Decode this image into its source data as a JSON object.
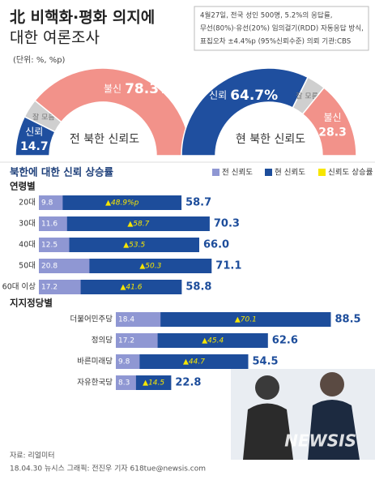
{
  "header": {
    "title": [
      "北 비핵화·평화 의지에",
      "대한 여론조사"
    ],
    "unit": "(단위: %, %p)",
    "note": [
      "4월27일, 전국 성인 500명, 5.2%의 응답률,",
      "무선(80%)·유선(20%) 임의걸기(RDD) 자동응답 방식,",
      "표집오차 ±4.4%p (95%신뢰수준) 의뢰 기관:CBS"
    ]
  },
  "chart_data": [
    {
      "type": "half-donut",
      "title": "전 북한 신뢰도",
      "categories": [
        "신뢰",
        "잘 모름",
        "불신"
      ],
      "values": [
        14.7,
        7.0,
        78.3
      ],
      "value_labels": [
        "14.7",
        null,
        "78.3%"
      ],
      "colors": [
        "#1f4f9f",
        "#cfcfcf",
        "#f2928a"
      ]
    },
    {
      "type": "half-donut",
      "title": "현 북한 신뢰도",
      "categories": [
        "신뢰",
        "잘 모름",
        "불신"
      ],
      "values": [
        64.7,
        7.0,
        28.3
      ],
      "value_labels": [
        "64.7%",
        null,
        "28.3"
      ],
      "colors": [
        "#1f4f9f",
        "#cfcfcf",
        "#f2928a"
      ]
    },
    {
      "type": "hbar-overlap",
      "title": "북한에 대한 신뢰 상승률",
      "subtitle": "연령별",
      "legend": "top-right",
      "categories": [
        "20대",
        "30대",
        "40대",
        "50대",
        "60대 이상"
      ],
      "series": [
        {
          "name": "전 신뢰도",
          "color": "#8f97d3",
          "values": [
            9.8,
            11.6,
            12.5,
            20.8,
            17.2
          ]
        },
        {
          "name": "현 신뢰도",
          "color": "#1d4d9b",
          "values": [
            58.7,
            70.3,
            66.0,
            71.1,
            58.8
          ],
          "value_labels": [
            "58.7",
            "70.3",
            "66.0",
            "71.1",
            "58.8"
          ]
        },
        {
          "name": "신뢰도 상승률",
          "color": "#f7e600",
          "values": [
            48.9,
            58.7,
            53.5,
            50.3,
            41.6
          ],
          "value_labels": [
            "▲48.9%p",
            "▲58.7",
            "▲53.5",
            "▲50.3",
            "▲41.6"
          ]
        }
      ]
    },
    {
      "type": "hbar-overlap",
      "subtitle": "지지정당별",
      "categories": [
        "더불어민주당",
        "정의당",
        "바른미래당",
        "자유한국당"
      ],
      "series": [
        {
          "color": "#8f97d3",
          "values": [
            18.4,
            17.2,
            9.8,
            8.3
          ]
        },
        {
          "color": "#1d4d9b",
          "values": [
            88.5,
            62.6,
            54.5,
            22.8
          ],
          "value_labels": [
            "88.5",
            "62.6",
            "54.5",
            "22.8"
          ]
        },
        {
          "color": "#f7e600",
          "values": [
            70.1,
            45.4,
            44.7,
            14.5
          ],
          "value_labels": [
            "▲70.1",
            "▲45.4",
            "▲44.7",
            "▲14.5"
          ]
        }
      ]
    }
  ],
  "footer": {
    "source": "자료: 리얼미터",
    "credit": "18.04.30 뉴시스 그래픽: 전진우 기자 618tue@newsis.com",
    "watermark": "NEWSIS"
  }
}
